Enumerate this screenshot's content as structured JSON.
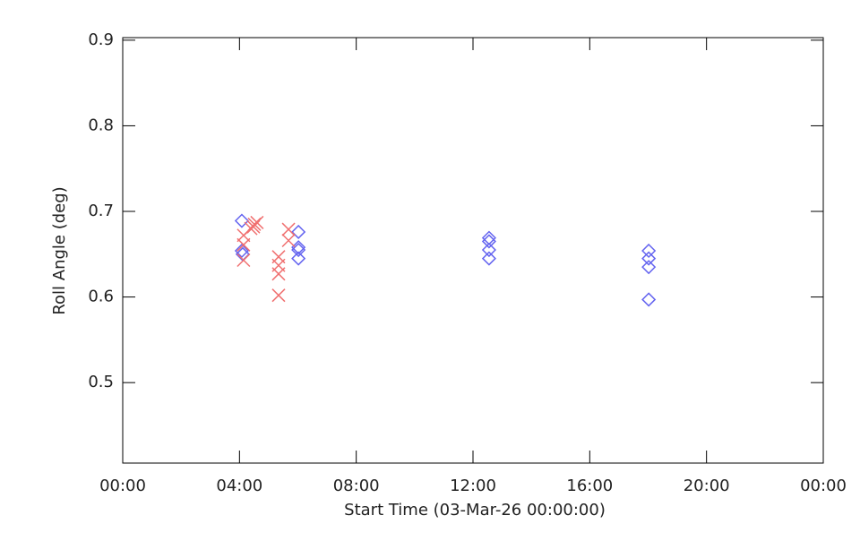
{
  "chart_data": {
    "type": "scatter",
    "xlabel": "Start Time (03-Mar-26 00:00:00)",
    "ylabel": "Roll Angle (deg)",
    "xlim": [
      0,
      24
    ],
    "xticks": [
      {
        "value": 0,
        "label": "00:00"
      },
      {
        "value": 4,
        "label": "04:00"
      },
      {
        "value": 8,
        "label": "08:00"
      },
      {
        "value": 12,
        "label": "12:00"
      },
      {
        "value": 16,
        "label": "16:00"
      },
      {
        "value": 20,
        "label": "20:00"
      },
      {
        "value": 24,
        "label": "00:00"
      }
    ],
    "ylim": [
      0.406,
      0.903
    ],
    "yticks": [
      0.5,
      0.6,
      0.7,
      0.8,
      0.9
    ],
    "series": [
      {
        "color": "#6464f0",
        "marker": "diamond",
        "x": [
          4.08,
          4.08,
          4.11,
          6.02,
          6.02,
          6.02,
          6.02,
          12.55,
          12.55,
          12.55,
          12.55,
          18.02,
          18.02,
          18.02,
          18.02
        ],
        "values": [
          0.689,
          0.654,
          0.65,
          0.676,
          0.658,
          0.655,
          0.645,
          0.669,
          0.665,
          0.655,
          0.645,
          0.654,
          0.645,
          0.635,
          0.597
        ]
      },
      {
        "color": "#f07070",
        "marker": "x",
        "x": [
          4.14,
          4.14,
          4.14,
          4.39,
          4.48,
          4.51,
          4.6,
          5.34,
          5.34,
          5.34,
          5.34,
          5.68,
          5.68
        ],
        "values": [
          0.672,
          0.661,
          0.643,
          0.68,
          0.682,
          0.685,
          0.687,
          0.647,
          0.637,
          0.627,
          0.602,
          0.679,
          0.666
        ]
      }
    ]
  }
}
